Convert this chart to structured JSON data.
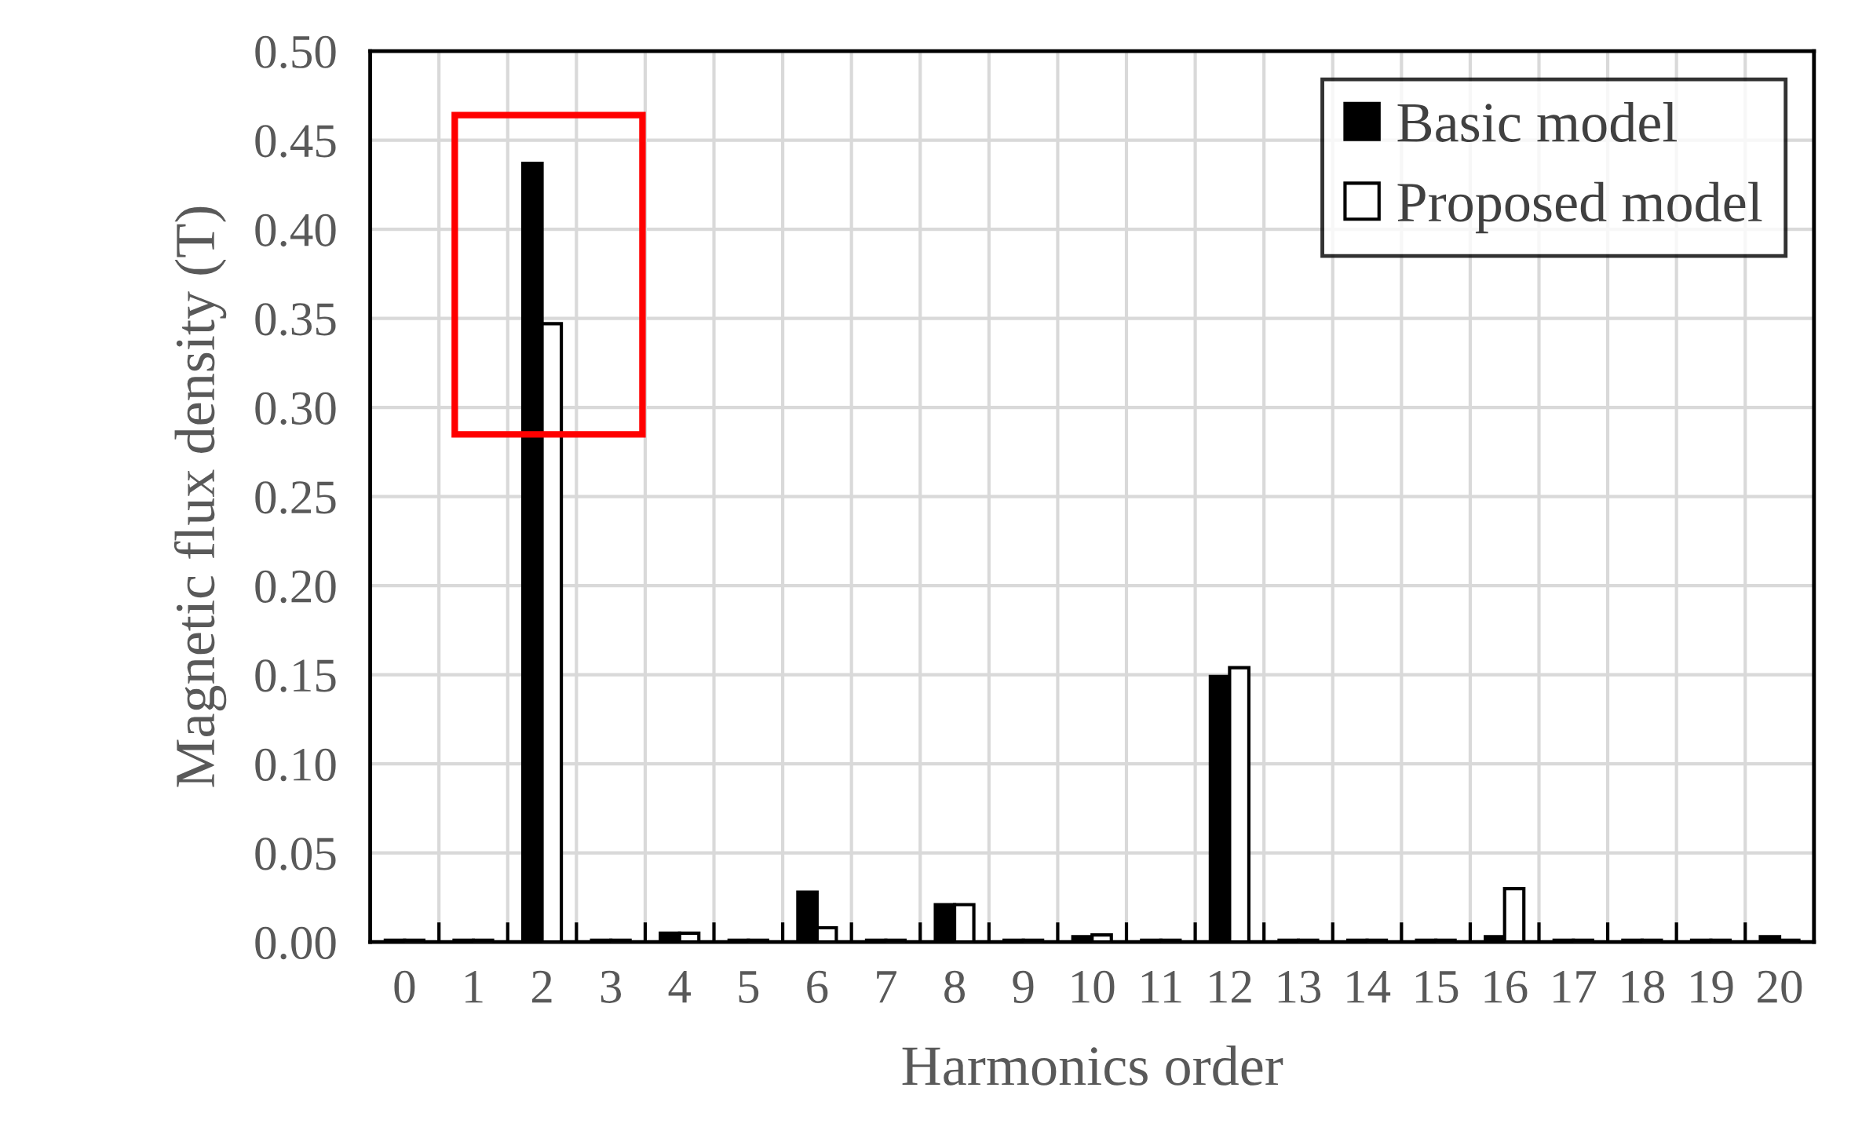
{
  "chart_data": {
    "type": "bar",
    "xlabel": "Harmonics order",
    "ylabel": "Magnetic flux density (T)",
    "categories": [
      "0",
      "1",
      "2",
      "3",
      "4",
      "5",
      "6",
      "7",
      "8",
      "9",
      "10",
      "11",
      "12",
      "13",
      "14",
      "15",
      "16",
      "17",
      "18",
      "19",
      "20"
    ],
    "series": [
      {
        "name": "Basic model",
        "color": "#000000",
        "values": [
          0.001,
          0.001,
          0.437,
          0.001,
          0.005,
          0.001,
          0.028,
          0.001,
          0.021,
          0.001,
          0.003,
          0.001,
          0.149,
          0.001,
          0.001,
          0.001,
          0.003,
          0.001,
          0.001,
          0.001,
          0.003
        ]
      },
      {
        "name": "Proposed model",
        "color": "#ffffff",
        "values": [
          0.001,
          0.001,
          0.347,
          0.001,
          0.005,
          0.001,
          0.008,
          0.001,
          0.021,
          0.001,
          0.004,
          0.001,
          0.154,
          0.001,
          0.001,
          0.001,
          0.03,
          0.001,
          0.001,
          0.001,
          0.001
        ]
      }
    ],
    "ylim": [
      0,
      0.5
    ],
    "yticks": [
      {
        "value": 0,
        "label": "0.00"
      },
      {
        "value": 0.05,
        "label": "0.05"
      },
      {
        "value": 0.1,
        "label": "0.10"
      },
      {
        "value": 0.15,
        "label": "0.15"
      },
      {
        "value": 0.2,
        "label": "0.20"
      },
      {
        "value": 0.25,
        "label": "0.25"
      },
      {
        "value": 0.3,
        "label": "0.30"
      },
      {
        "value": 0.35,
        "label": "0.35"
      },
      {
        "value": 0.4,
        "label": "0.40"
      },
      {
        "value": 0.45,
        "label": "0.45"
      },
      {
        "value": 0.5,
        "label": "0.50"
      }
    ],
    "grid": true,
    "legend": "top right"
  }
}
